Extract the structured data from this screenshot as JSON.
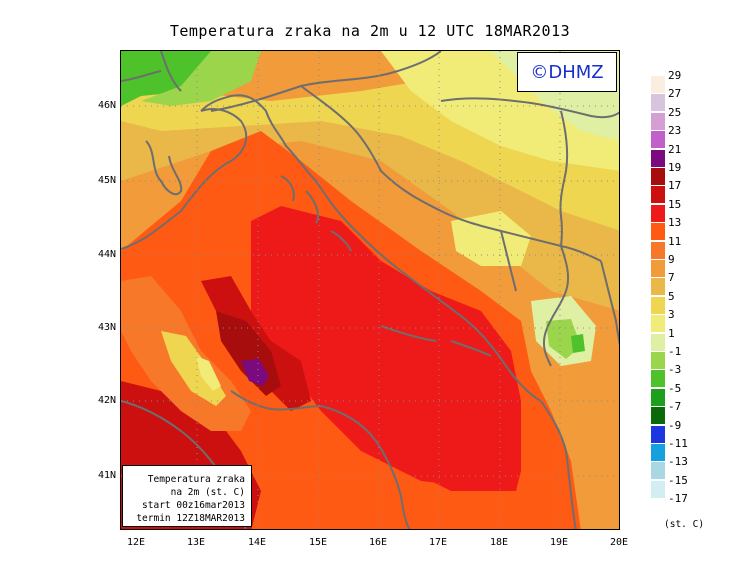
{
  "title": "Temperatura zraka na 2m u 12 UTC 18MAR2013",
  "logo": "©DHMZ",
  "info": {
    "line1": "Temperatura zraka",
    "line2": "na 2m (st. C)",
    "line3": "start 00z16mar2013",
    "line4": "termin 12Z18MAR2013"
  },
  "axes": {
    "lat_labels": [
      "46N",
      "45N",
      "44N",
      "43N",
      "42N",
      "41N"
    ],
    "lon_labels": [
      "12E",
      "13E",
      "14E",
      "15E",
      "16E",
      "17E",
      "18E",
      "19E",
      "20E"
    ]
  },
  "legend": {
    "labels": [
      "29",
      "27",
      "25",
      "23",
      "21",
      "19",
      "17",
      "15",
      "13",
      "11",
      "9",
      "7",
      "5",
      "3",
      "1",
      "-1",
      "-3",
      "-5",
      "-7",
      "-9",
      "-11",
      "-13",
      "-15",
      "-17"
    ],
    "colors": [
      "#fbeee0",
      "#d8c4dc",
      "#d49fd2",
      "#c060c8",
      "#7a0a7e",
      "#a70d0d",
      "#cc1010",
      "#ee1a1a",
      "#ff5a14",
      "#f8782a",
      "#f19b3b",
      "#eab848",
      "#efd650",
      "#f1ec78",
      "#dff0a5",
      "#9bd54c",
      "#4ec22b",
      "#1d9f1d",
      "#0a6a0a",
      "#1d37e0",
      "#16a0e0",
      "#a9d8e4",
      "#d3eef3"
    ],
    "units": "(st. C)"
  }
}
